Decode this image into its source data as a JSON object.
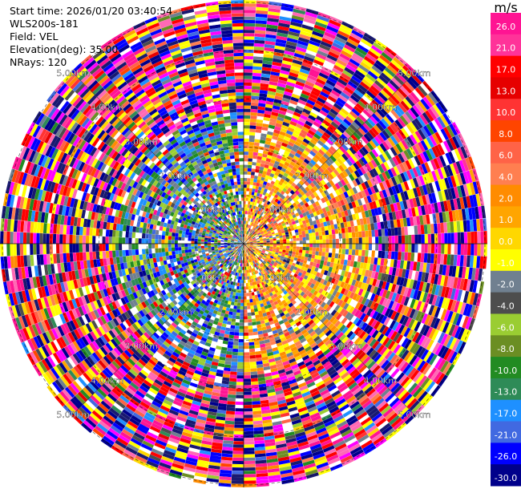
{
  "header": {
    "start_time": "Start time: 2026/01/20 03:40:54",
    "instrument": "WLS200s-181",
    "field": "Field: VEL",
    "elevation": "Elevation(deg): 35.00",
    "nrays": "NRays: 120"
  },
  "chart_data": {
    "type": "heatmap",
    "projection": "polar (PPI)",
    "field": "VEL",
    "units": "m/s",
    "n_rays": 120,
    "elevation_deg": 35.0,
    "range_ring_labels": [
      "1.00km",
      "2.00km",
      "3.00km",
      "4.00km",
      "5.00km"
    ],
    "color_scale": {
      "units": "m/s",
      "tick_labels": [
        "26.0",
        "21.0",
        "17.0",
        "13.0",
        "10.0",
        "8.0",
        "6.0",
        "4.0",
        "2.0",
        "1.0",
        "0.0",
        "-1.0",
        "-2.0",
        "-4.0",
        "-6.0",
        "-8.0",
        "-10.0",
        "-13.0",
        "-17.0",
        "-21.0",
        "-26.0",
        "-30.0"
      ],
      "colors": [
        "#ff1493",
        "#ff3399",
        "#ff0000",
        "#e60000",
        "#ff3333",
        "#ff4500",
        "#ff6347",
        "#ff7f50",
        "#ff8c00",
        "#ffa500",
        "#ffd700",
        "#ffff00",
        "#708090",
        "#4d4d4d",
        "#9acd32",
        "#6b8e23",
        "#228b22",
        "#2e8b57",
        "#1e90ff",
        "#4169e1",
        "#0000ff",
        "#00008b",
        "#191970"
      ]
    },
    "near_field_colors": {
      "negative": [
        "#1e90ff",
        "#4169e1",
        "#0000ff",
        "#9acd32",
        "#228b22",
        "#2e8b57",
        "#ffffff",
        "#708090"
      ],
      "positive": [
        "#ffd700",
        "#ffff00",
        "#ff8c00",
        "#ffa500",
        "#ff7f50",
        "#ff6347",
        "#ffffff",
        "#708090"
      ]
    }
  }
}
